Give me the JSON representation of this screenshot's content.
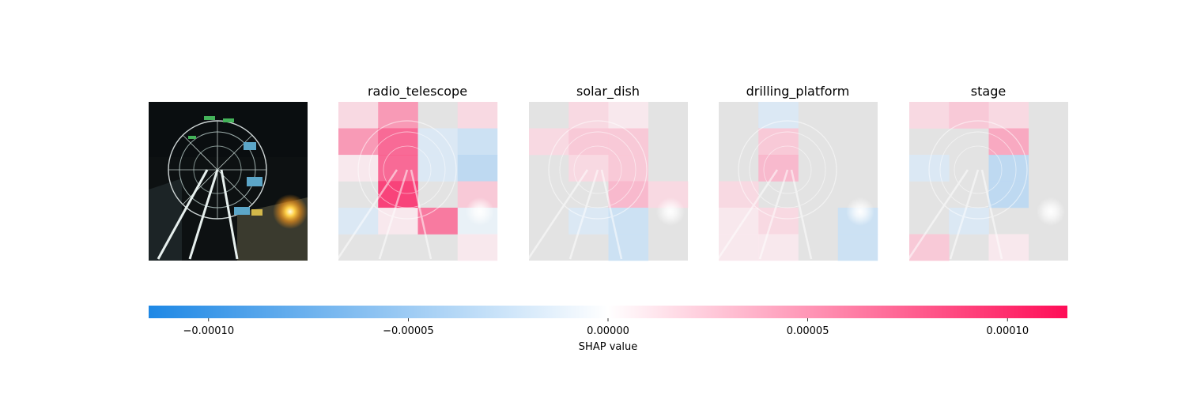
{
  "chart_data": {
    "type": "heatmap",
    "title": "",
    "colorbar": {
      "label": "SHAP value",
      "range": [
        -0.000115,
        0.000115
      ],
      "ticks": [
        -0.0001,
        -5e-05,
        0.0,
        5e-05,
        0.0001
      ],
      "tick_labels": [
        "−0.00010",
        "−0.00005",
        "0.00000",
        "0.00005",
        "0.00010"
      ],
      "colormap": [
        "#1e88e5",
        "#ffffff",
        "#ff0d57"
      ]
    },
    "input_image": {
      "description": "Illuminated ferris wheel at night with a bright orange street light",
      "grid_on": false
    },
    "panels": [
      {
        "label": "radio_telescope",
        "grid_size": 4,
        "values": [
          [
            2e-05,
            6e-05,
            0.0,
            2e-05
          ],
          [
            6e-05,
            9e-05,
            -2e-05,
            -3e-05
          ],
          [
            1e-05,
            9e-05,
            -2e-05,
            -4e-05
          ],
          [
            0.0,
            0.00012,
            0.0,
            3e-05
          ],
          [
            -2e-05,
            1e-05,
            8e-05,
            -1e-05
          ],
          [
            0.0,
            0.0,
            0.0,
            1e-05
          ]
        ]
      },
      {
        "label": "solar_dish",
        "grid_size": 4,
        "values": [
          [
            0.0,
            2e-05,
            1e-05,
            0.0
          ],
          [
            2e-05,
            3e-05,
            3e-05,
            0.0
          ],
          [
            0.0,
            2e-05,
            3e-05,
            0.0
          ],
          [
            0.0,
            0.0,
            4e-05,
            2e-05
          ],
          [
            0.0,
            -2e-05,
            -3e-05,
            0.0
          ],
          [
            0.0,
            0.0,
            -3e-05,
            0.0
          ]
        ]
      },
      {
        "label": "drilling_platform",
        "grid_size": 4,
        "values": [
          [
            0.0,
            -2e-05,
            0.0,
            0.0
          ],
          [
            0.0,
            3e-05,
            0.0,
            0.0
          ],
          [
            0.0,
            4e-05,
            0.0,
            0.0
          ],
          [
            2e-05,
            0.0,
            0.0,
            0.0
          ],
          [
            1e-05,
            2e-05,
            0.0,
            -3e-05
          ],
          [
            1e-05,
            1e-05,
            0.0,
            -3e-05
          ]
        ]
      },
      {
        "label": "stage",
        "grid_size": 4,
        "values": [
          [
            2e-05,
            3e-05,
            2e-05,
            0.0
          ],
          [
            0.0,
            0.0,
            5e-05,
            0.0
          ],
          [
            -2e-05,
            0.0,
            -4e-05,
            0.0
          ],
          [
            0.0,
            0.0,
            -4e-05,
            0.0
          ],
          [
            0.0,
            -2e-05,
            0.0,
            0.0
          ],
          [
            3e-05,
            0.0,
            1e-05,
            0.0
          ]
        ]
      }
    ]
  }
}
